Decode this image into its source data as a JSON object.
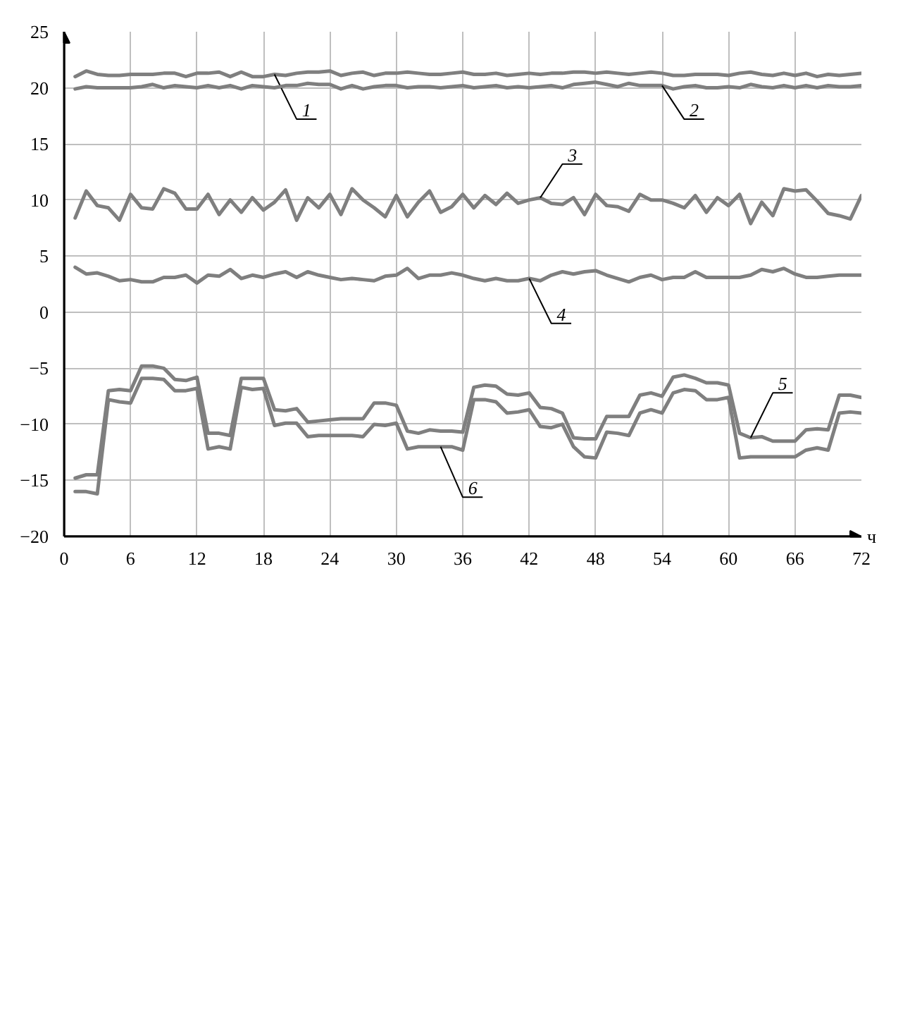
{
  "chart_data": {
    "type": "line",
    "xlabel": "ч",
    "x": [
      1,
      2,
      3,
      4,
      5,
      6,
      7,
      8,
      9,
      10,
      11,
      12,
      13,
      14,
      15,
      16,
      17,
      18,
      19,
      20,
      21,
      22,
      23,
      24,
      25,
      26,
      27,
      28,
      29,
      30,
      31,
      32,
      33,
      34,
      35,
      36,
      37,
      38,
      39,
      40,
      41,
      42,
      43,
      44,
      45,
      46,
      47,
      48,
      49,
      50,
      51,
      52,
      53,
      54,
      55,
      56,
      57,
      58,
      59,
      60,
      61,
      62,
      63,
      64,
      65,
      66,
      67,
      68,
      69,
      70,
      71,
      72
    ],
    "xlim": [
      0,
      72
    ],
    "xticks": [
      0,
      6,
      12,
      18,
      24,
      30,
      36,
      42,
      48,
      54,
      60,
      66,
      72
    ],
    "ylim": [
      -20,
      25
    ],
    "yticks": [
      -20,
      -15,
      -10,
      -5,
      0,
      5,
      10,
      15,
      20,
      25
    ],
    "grid": true,
    "marker": "none",
    "line_style": "solid",
    "series": [
      {
        "name": "1",
        "color": "#7f7f7f",
        "values": [
          21.0,
          21.5,
          21.2,
          21.1,
          21.1,
          21.2,
          21.2,
          21.2,
          21.3,
          21.3,
          21.0,
          21.3,
          21.3,
          21.4,
          21.0,
          21.4,
          21.0,
          21.0,
          21.2,
          21.1,
          21.3,
          21.4,
          21.4,
          21.5,
          21.1,
          21.3,
          21.4,
          21.1,
          21.3,
          21.3,
          21.4,
          21.3,
          21.2,
          21.2,
          21.3,
          21.4,
          21.2,
          21.2,
          21.3,
          21.1,
          21.2,
          21.3,
          21.2,
          21.3,
          21.3,
          21.4,
          21.4,
          21.3,
          21.4,
          21.3,
          21.2,
          21.3,
          21.4,
          21.3,
          21.1,
          21.1,
          21.2,
          21.2,
          21.2,
          21.1,
          21.3,
          21.4,
          21.2,
          21.1,
          21.3,
          21.1,
          21.3,
          21.0,
          21.2,
          21.1,
          21.2,
          21.3
        ]
      },
      {
        "name": "2",
        "color": "#7f7f7f",
        "values": [
          19.9,
          20.1,
          20.0,
          20.0,
          20.0,
          20.0,
          20.1,
          20.3,
          20.0,
          20.2,
          20.1,
          20.0,
          20.2,
          20.0,
          20.2,
          19.9,
          20.2,
          20.1,
          20.0,
          20.2,
          20.2,
          20.4,
          20.3,
          20.3,
          19.9,
          20.2,
          19.9,
          20.1,
          20.2,
          20.2,
          20.0,
          20.1,
          20.1,
          20.0,
          20.1,
          20.2,
          20.0,
          20.1,
          20.2,
          20.0,
          20.1,
          20.0,
          20.1,
          20.2,
          20.0,
          20.3,
          20.4,
          20.5,
          20.3,
          20.1,
          20.4,
          20.2,
          20.2,
          20.2,
          19.9,
          20.1,
          20.2,
          20.0,
          20.0,
          20.1,
          20.0,
          20.3,
          20.1,
          20.0,
          20.2,
          20.0,
          20.2,
          20.0,
          20.2,
          20.1,
          20.1,
          20.2
        ]
      },
      {
        "name": "3",
        "color": "#7f7f7f",
        "values": [
          8.4,
          10.8,
          9.5,
          9.3,
          8.2,
          10.5,
          9.3,
          9.2,
          11.0,
          10.6,
          9.2,
          9.2,
          10.5,
          8.7,
          10.0,
          8.9,
          10.2,
          9.1,
          9.8,
          10.9,
          8.2,
          10.2,
          9.3,
          10.5,
          8.7,
          11.0,
          10.0,
          9.3,
          8.5,
          10.4,
          8.5,
          9.8,
          10.8,
          8.9,
          9.4,
          10.5,
          9.3,
          10.4,
          9.6,
          10.6,
          9.7,
          10.0,
          10.2,
          9.7,
          9.6,
          10.2,
          8.7,
          10.5,
          9.5,
          9.4,
          9.0,
          10.5,
          10.0,
          10.0,
          9.7,
          9.3,
          10.4,
          8.9,
          10.2,
          9.5,
          10.5,
          7.9,
          9.8,
          8.6,
          11.0,
          10.8,
          10.9,
          9.9,
          8.8,
          8.6,
          8.3,
          10.4
        ]
      },
      {
        "name": "4",
        "color": "#7f7f7f",
        "values": [
          4.0,
          3.4,
          3.5,
          3.2,
          2.8,
          2.9,
          2.7,
          2.7,
          3.1,
          3.1,
          3.3,
          2.6,
          3.3,
          3.2,
          3.8,
          3.0,
          3.3,
          3.1,
          3.4,
          3.6,
          3.1,
          3.6,
          3.3,
          3.1,
          2.9,
          3.0,
          2.9,
          2.8,
          3.2,
          3.3,
          3.9,
          3.0,
          3.3,
          3.3,
          3.5,
          3.3,
          3.0,
          2.8,
          3.0,
          2.8,
          2.8,
          3.0,
          2.8,
          3.3,
          3.6,
          3.4,
          3.6,
          3.7,
          3.3,
          3.0,
          2.7,
          3.1,
          3.3,
          2.9,
          3.1,
          3.1,
          3.6,
          3.1,
          3.1,
          3.1,
          3.1,
          3.3,
          3.8,
          3.6,
          3.9,
          3.4,
          3.1,
          3.1,
          3.2,
          3.3,
          3.3,
          3.3
        ]
      },
      {
        "name": "5",
        "color": "#7f7f7f",
        "values": [
          -14.8,
          -14.5,
          -14.5,
          -7.0,
          -6.9,
          -7.0,
          -4.8,
          -4.8,
          -5.0,
          -6.0,
          -6.1,
          -5.8,
          -10.8,
          -10.8,
          -11.0,
          -5.9,
          -5.9,
          -5.9,
          -8.7,
          -8.8,
          -8.6,
          -9.8,
          -9.7,
          -9.6,
          -9.5,
          -9.5,
          -9.5,
          -8.1,
          -8.1,
          -8.3,
          -10.6,
          -10.8,
          -10.5,
          -10.6,
          -10.6,
          -10.7,
          -6.7,
          -6.5,
          -6.6,
          -7.3,
          -7.4,
          -7.2,
          -8.5,
          -8.6,
          -9.0,
          -11.2,
          -11.3,
          -11.3,
          -9.3,
          -9.3,
          -9.3,
          -7.4,
          -7.2,
          -7.5,
          -5.8,
          -5.6,
          -5.9,
          -6.3,
          -6.3,
          -6.5,
          -10.8,
          -11.2,
          -11.1,
          -11.5,
          -11.5,
          -11.5,
          -10.5,
          -10.4,
          -10.5,
          -7.4,
          -7.4,
          -7.6
        ]
      },
      {
        "name": "6",
        "color": "#7f7f7f",
        "values": [
          -16.0,
          -16.0,
          -16.2,
          -7.8,
          -8.0,
          -8.1,
          -5.9,
          -5.9,
          -6.0,
          -7.0,
          -7.0,
          -6.8,
          -12.2,
          -12.0,
          -12.2,
          -6.7,
          -6.9,
          -6.8,
          -10.1,
          -9.9,
          -9.9,
          -11.1,
          -11.0,
          -11.0,
          -11.0,
          -11.0,
          -11.1,
          -10.0,
          -10.1,
          -9.9,
          -12.2,
          -12.0,
          -12.0,
          -12.0,
          -12.0,
          -12.3,
          -7.8,
          -7.8,
          -8.0,
          -9.0,
          -8.9,
          -8.7,
          -10.2,
          -10.3,
          -10.0,
          -12.0,
          -12.9,
          -13.0,
          -10.7,
          -10.8,
          -11.0,
          -9.0,
          -8.7,
          -9.0,
          -7.2,
          -6.9,
          -7.0,
          -7.8,
          -7.8,
          -7.6,
          -13.0,
          -12.9,
          -12.9,
          -12.9,
          -12.9,
          -12.9,
          -12.3,
          -12.1,
          -12.3,
          -9.0,
          -8.9,
          -9.0
        ]
      }
    ]
  }
}
